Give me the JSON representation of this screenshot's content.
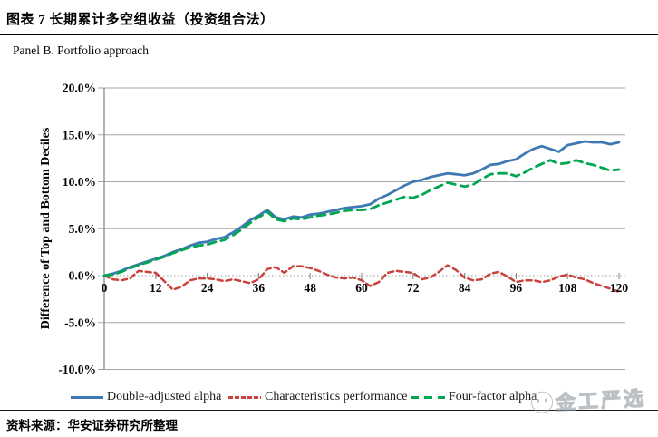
{
  "header": {
    "title": "图表 7 长期累计多空组收益（投资组合法）"
  },
  "panel_label": "Panel B. Portfolio approach",
  "source_note": "资料来源：华安证券研究所整理",
  "watermark": {
    "text": "金工严选",
    "icon": "smiley-face-icon"
  },
  "colors": {
    "series_blue": "#3e79b4",
    "series_red": "#c9423c",
    "series_green": "#00a651",
    "gridline": "#a6a6a6",
    "axis": "#808080",
    "zero_line": "#9b9b9b",
    "text": "#000000",
    "watermark": "#96a0a6"
  },
  "chart_data": {
    "type": "line",
    "title": "Panel B. Portfolio approach",
    "xlabel": "",
    "ylabel": "Difference of Top and Bottom Deciles",
    "xlim": [
      0,
      120
    ],
    "ylim": [
      -10,
      20
    ],
    "x_ticks": [
      0,
      12,
      24,
      36,
      48,
      60,
      72,
      84,
      96,
      108,
      120
    ],
    "y_ticks_percent": [
      20,
      15,
      10,
      5,
      0,
      -5,
      -10
    ],
    "y_tick_format": "percent_1dp",
    "grid": true,
    "zero_line_style": "dotted",
    "legend_position": "bottom",
    "x_unit": "months",
    "x_interval": 2,
    "series": [
      {
        "name": "Double-adjusted alpha",
        "color": "#3e79b4",
        "line_style": "solid",
        "values_percent": [
          0.0,
          0.2,
          0.5,
          0.9,
          1.2,
          1.5,
          1.8,
          2.1,
          2.5,
          2.8,
          3.2,
          3.5,
          3.6,
          3.9,
          4.1,
          4.6,
          5.2,
          5.9,
          6.4,
          7.0,
          6.2,
          6.0,
          6.3,
          6.2,
          6.5,
          6.6,
          6.8,
          7.0,
          7.2,
          7.3,
          7.4,
          7.6,
          8.2,
          8.6,
          9.1,
          9.6,
          10.0,
          10.2,
          10.5,
          10.7,
          10.9,
          10.8,
          10.7,
          10.9,
          11.3,
          11.8,
          11.9,
          12.2,
          12.4,
          13.0,
          13.5,
          13.8,
          13.5,
          13.2,
          13.9,
          14.1,
          14.3,
          14.2,
          14.2,
          14.0,
          14.2
        ]
      },
      {
        "name": "Characteristics performance",
        "color": "#c9423c",
        "line_style": "dashed-short",
        "values_percent": [
          0.0,
          -0.4,
          -0.5,
          -0.3,
          0.5,
          0.4,
          0.3,
          -0.6,
          -1.5,
          -1.2,
          -0.5,
          -0.3,
          -0.3,
          -0.4,
          -0.6,
          -0.4,
          -0.6,
          -0.8,
          -0.4,
          0.7,
          0.9,
          0.3,
          1.0,
          1.0,
          0.8,
          0.5,
          0.1,
          -0.2,
          -0.3,
          -0.2,
          -0.5,
          -1.1,
          -0.7,
          0.3,
          0.5,
          0.4,
          0.3,
          -0.4,
          -0.2,
          0.4,
          1.1,
          0.6,
          -0.2,
          -0.5,
          -0.4,
          0.2,
          0.4,
          -0.1,
          -0.7,
          -0.5,
          -0.5,
          -0.7,
          -0.5,
          -0.1,
          0.1,
          -0.2,
          -0.4,
          -0.8,
          -1.1,
          -1.4,
          -1.7
        ]
      },
      {
        "name": "Four-factor alpha",
        "color": "#00a651",
        "line_style": "dashed-long",
        "values_percent": [
          0.0,
          0.1,
          0.4,
          0.8,
          1.1,
          1.4,
          1.7,
          2.0,
          2.4,
          2.7,
          3.0,
          3.2,
          3.3,
          3.6,
          3.8,
          4.3,
          4.9,
          5.6,
          6.2,
          6.8,
          6.0,
          5.8,
          6.1,
          6.0,
          6.2,
          6.4,
          6.5,
          6.7,
          6.9,
          7.0,
          7.0,
          7.1,
          7.5,
          7.8,
          8.1,
          8.4,
          8.3,
          8.6,
          9.1,
          9.5,
          9.9,
          9.7,
          9.5,
          9.7,
          10.3,
          10.8,
          10.9,
          10.9,
          10.6,
          11.0,
          11.5,
          11.9,
          12.3,
          11.9,
          12.0,
          12.3,
          12.0,
          11.8,
          11.5,
          11.2,
          11.3
        ]
      }
    ]
  }
}
